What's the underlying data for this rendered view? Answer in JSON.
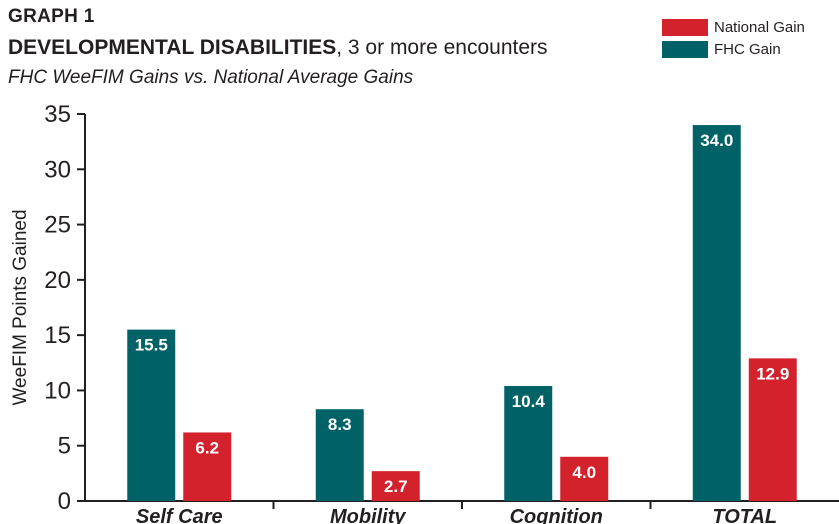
{
  "header": {
    "graph_label": "GRAPH 1",
    "title_bold": "DEVELOPMENTAL DISABILITIES",
    "title_rest": ", 3 or more encounters",
    "subtitle": "FHC WeeFIM Gains vs. National Average Gains"
  },
  "colors": {
    "fhc": "#006266",
    "national": "#d3222b",
    "axis": "#231f20"
  },
  "chart_data": {
    "type": "bar",
    "title": "DEVELOPMENTAL DISABILITIES, 3 or more encounters",
    "subtitle": "FHC WeeFIM Gains vs. National Average Gains",
    "xlabel": "",
    "ylabel": "WeeFIM Points Gained",
    "ylim": [
      0,
      35
    ],
    "yticks": [
      0,
      5,
      10,
      15,
      20,
      25,
      30,
      35
    ],
    "categories": [
      "Self Care",
      "Mobility",
      "Cognition",
      "TOTAL"
    ],
    "series": [
      {
        "name": "FHC Gain",
        "color": "#006266",
        "values": [
          15.5,
          8.3,
          10.4,
          34.0
        ],
        "labels": [
          "15.5",
          "8.3",
          "10.4",
          "34.0"
        ]
      },
      {
        "name": "National Gain",
        "color": "#d3222b",
        "values": [
          6.2,
          2.7,
          4.0,
          12.9
        ],
        "labels": [
          "6.2",
          "2.7",
          "4.0",
          "12.9"
        ]
      }
    ],
    "legend_order": [
      "National Gain",
      "FHC Gain"
    ],
    "legend_position": "top-right",
    "grid": false
  }
}
